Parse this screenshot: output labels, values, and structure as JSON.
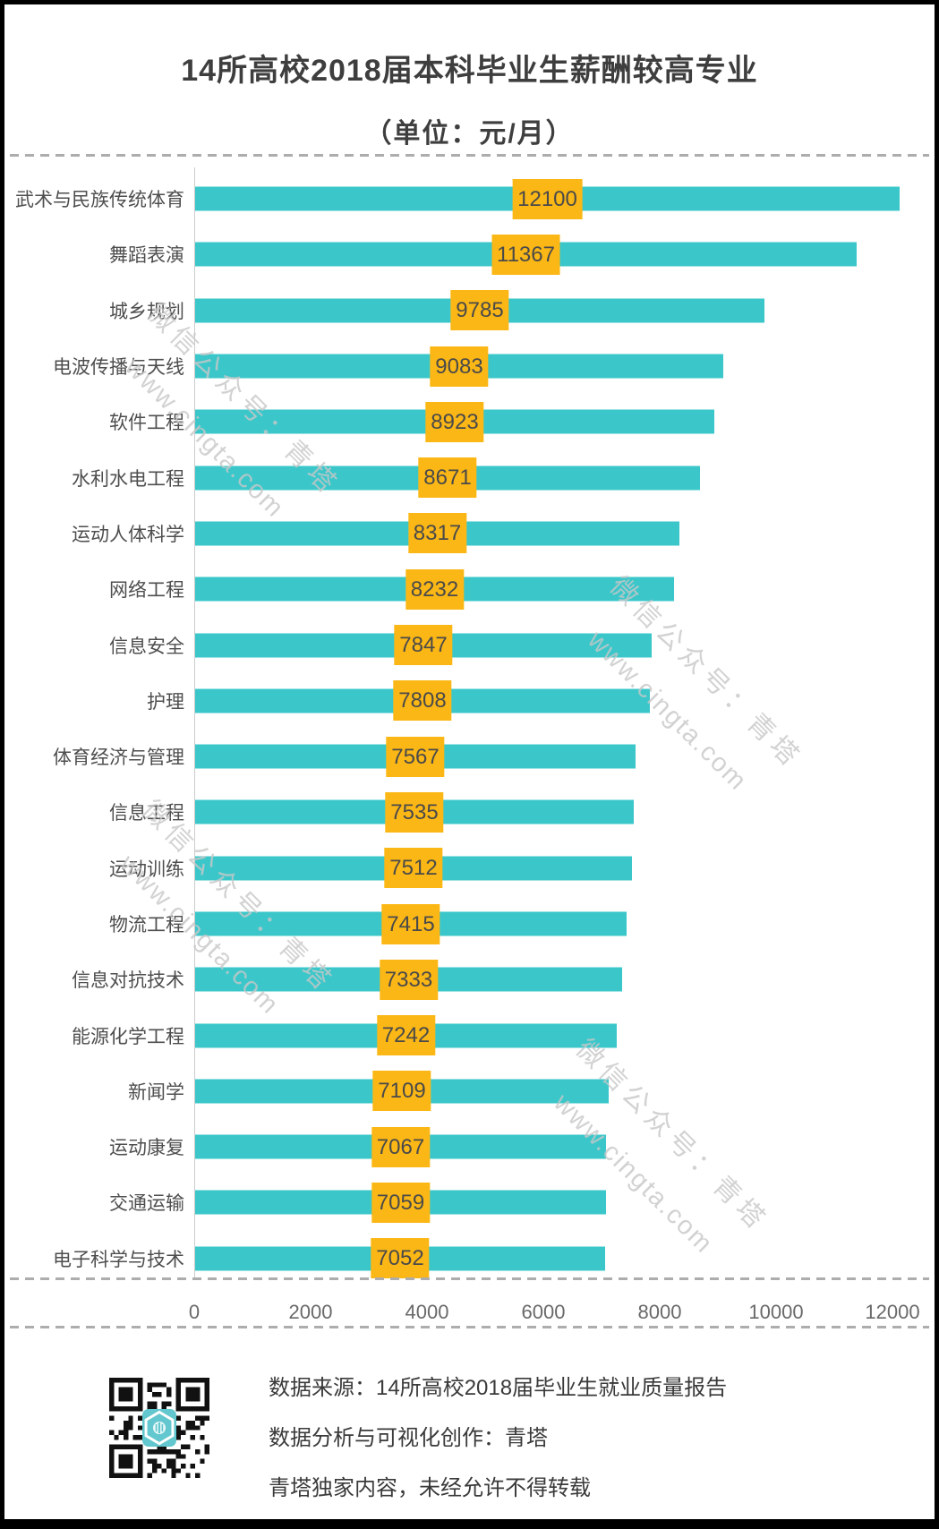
{
  "title": {
    "line1": "14所高校2018届本科毕业生薪酬较高专业",
    "line2": "（单位：元/月）"
  },
  "chart_data": {
    "type": "bar",
    "orientation": "horizontal",
    "title": "14所高校2018届本科毕业生薪酬较高专业（单位：元/月）",
    "categories": [
      "武术与民族传统体育",
      "舞蹈表演",
      "城乡规划",
      "电波传播与天线",
      "软件工程",
      "水利水电工程",
      "运动人体科学",
      "网络工程",
      "信息安全",
      "护理",
      "体育经济与管理",
      "信息工程",
      "运动训练",
      "物流工程",
      "信息对抗技术",
      "能源化学工程",
      "新闻学",
      "运动康复",
      "交通运输",
      "电子科学与技术"
    ],
    "values": [
      12100,
      11367,
      9785,
      9083,
      8923,
      8671,
      8317,
      8232,
      7847,
      7808,
      7567,
      7535,
      7512,
      7415,
      7333,
      7242,
      7109,
      7067,
      7059,
      7052
    ],
    "xlabel": "",
    "ylabel": "",
    "xlim": [
      0,
      12000
    ],
    "x_ticks": [
      0,
      2000,
      4000,
      6000,
      8000,
      10000,
      12000
    ],
    "grid": false,
    "legend": "none",
    "value_labels": "centered-on-bar"
  },
  "watermark": {
    "line1": "微信公众号：青塔",
    "line2": "www.cingta.com"
  },
  "footer": {
    "source": "数据来源：14所高校2018届毕业生就业质量报告",
    "credit": "数据分析与可视化创作：青塔",
    "copyright": "青塔独家内容，未经允许不得转载"
  },
  "icons": {
    "qr_code": "qr-code",
    "qr_center_logo": "cingta-logo"
  },
  "colors": {
    "bar": "#3BC7CA",
    "badge_bg": "#FBB715",
    "badge_text": "#4A4A4A",
    "title": "#3E3E3E",
    "category": "#4E4E4E",
    "tick": "#696969",
    "footer": "#3A3A3A",
    "watermark": "#C8C8C8",
    "dash": "#ADADAD",
    "axis_line": "#CCCCCC",
    "logo_teal": "#62C7CE"
  }
}
